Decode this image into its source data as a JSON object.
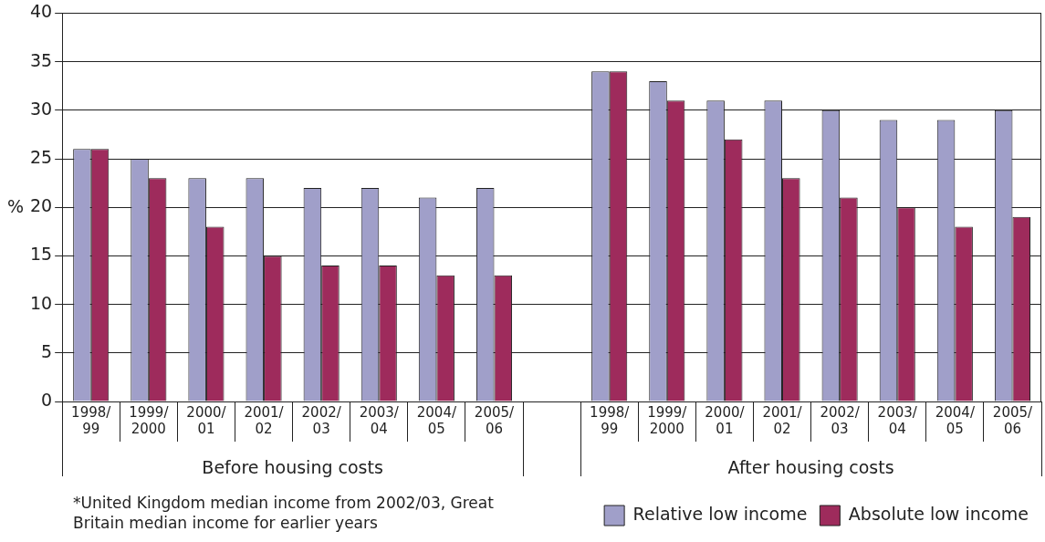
{
  "chart_data": {
    "type": "bar",
    "ylabel": "%",
    "categories": [
      "1998/99",
      "1999/2000",
      "2000/01",
      "2001/02",
      "2002/03",
      "2003/04",
      "2004/05",
      "2005/06",
      null,
      "1998/99",
      "1999/2000",
      "2000/01",
      "2001/02",
      "2002/03",
      "2003/04",
      "2004/05",
      "2005/06"
    ],
    "series": [
      {
        "name": "Relative low income",
        "color": "#a09fc9",
        "values": [
          26,
          25,
          23,
          23,
          22,
          22,
          21,
          22,
          null,
          34,
          33,
          31,
          31,
          30,
          29,
          29,
          30
        ]
      },
      {
        "name": "Absolute low income",
        "color": "#9e2b5c",
        "values": [
          26,
          23,
          18,
          15,
          14,
          14,
          13,
          13,
          null,
          34,
          31,
          27,
          23,
          21,
          20,
          18,
          19
        ]
      }
    ],
    "ylim": [
      0,
      40
    ],
    "yticks": [
      0,
      5,
      10,
      15,
      20,
      25,
      30,
      35,
      40
    ],
    "grid": "y",
    "legend": "bottom right",
    "annotations": [
      "Before housing costs",
      "After housing costs",
      "*United Kingdom median income from 2002/03, Great Britain median income for earlier years"
    ]
  }
}
